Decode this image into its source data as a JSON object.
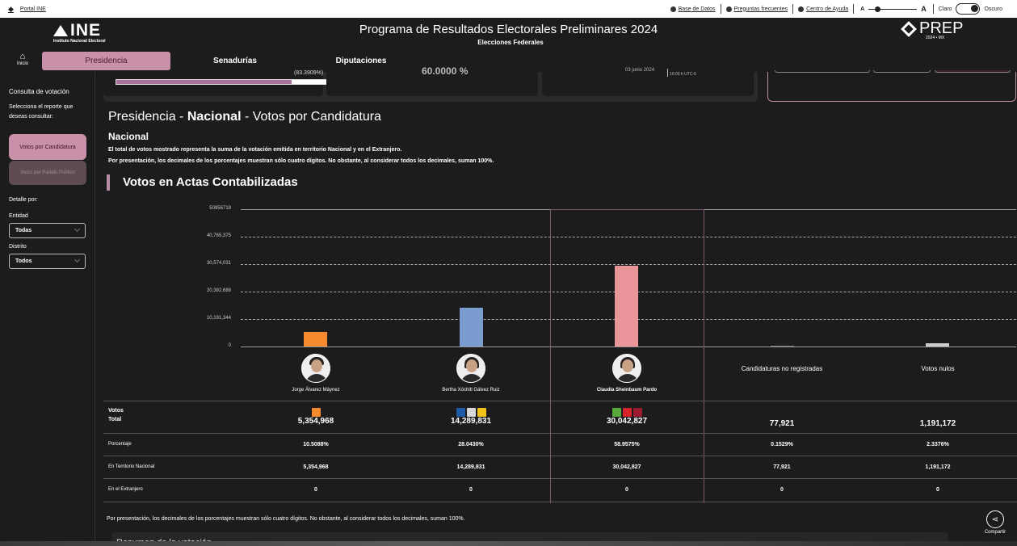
{
  "topbar": {
    "portal": "Portal INE",
    "links": [
      "Base de Datos",
      "Preguntas frecuentes",
      "Centro de Ayuda"
    ],
    "font_small": "A",
    "font_large": "A",
    "theme_light": "Claro",
    "theme_dark": "Oscuro"
  },
  "header": {
    "ine_logo": "INE",
    "ine_sub": "Instituto Nacional Electoral",
    "title": "Programa de Resultados Electorales Preliminares 2024",
    "subtitle": "Elecciones Federales",
    "prep_logo": "PREP",
    "prep_sub": "2024 • MX"
  },
  "nav": {
    "home": "Inicio",
    "tabs": [
      "Presidencia",
      "Senadurías",
      "Diputaciones"
    ]
  },
  "sidebar": {
    "heading": "Consulta de votación",
    "instruction": "Selecciona el reporte que deseas consultar:",
    "btn_candidatura": "Votos por Candidatura",
    "btn_partido": "Votos por Partido Político",
    "detalle": "Detalle por:",
    "entidad_label": "Entidad",
    "entidad_value": "Todas",
    "distrito_label": "Distrito",
    "distrito_value": "Todos"
  },
  "stats": {
    "actas_pct": "(83.3909%)",
    "actas_fill": 0.834,
    "participation_partial": "60.0000 %",
    "date_partial": "03 junio 2024",
    "time_partial": "10:00 h UTC-6"
  },
  "main": {
    "title_pre": "Presidencia - ",
    "title_bold": "Nacional",
    "title_post": " - Votos por Candidatura",
    "scope": "Nacional",
    "note1": "El total de votos mostrado representa la suma de la votación emitida en territorio Nacional y en el Extranjero.",
    "note2": "Por presentación, los decimales de los porcentajes muestran sólo cuatro dígitos. No obstante, al considerar todos los decimales, suman 100%.",
    "section": "Votos en Actas Contabilizadas",
    "footnote": "Por presentación, los decimales de los porcentajes muestran sólo cuatro dígitos. No obstante, al considerar todos los decimales, suman 100%.",
    "resumen": "Resumen de la votación",
    "share": "Compartir"
  },
  "chart_data": {
    "type": "bar",
    "ticks": [
      "50956719",
      "40,765,375",
      "30,574,031",
      "20,382,688",
      "10,191,344",
      "0"
    ],
    "ylim": [
      0,
      50956719
    ],
    "categories": [
      "Jorge Álvarez Máynez",
      "Bertha Xóchitl Gálvez Ruiz",
      "Claudia Sheinbaum Pardo",
      "Candidaturas no registradas",
      "Votos nulos"
    ],
    "values": [
      5354968,
      14289831,
      30042827,
      77921,
      1191172
    ],
    "colors": [
      "#f58a2e",
      "#7a9ccf",
      "#e9959a",
      "#777777",
      "#cccccc"
    ]
  },
  "table": {
    "votos_label": "Votos",
    "total_label": "Total",
    "rows": [
      {
        "label": "Porcentaje",
        "values": [
          "10.5088%",
          "28.0430%",
          "58.9575%",
          "0.1529%",
          "2.3376%"
        ]
      },
      {
        "label": "En Territorio Nacional",
        "values": [
          "5,354,968",
          "14,289,831",
          "30,042,827",
          "77,921",
          "1,191,172"
        ]
      },
      {
        "label": "En el Extranjero",
        "values": [
          "0",
          "0",
          "0",
          "0",
          "0"
        ]
      }
    ],
    "totals": [
      "5,354,968",
      "14,289,831",
      "30,042,827",
      "77,921",
      "1,191,172"
    ]
  }
}
